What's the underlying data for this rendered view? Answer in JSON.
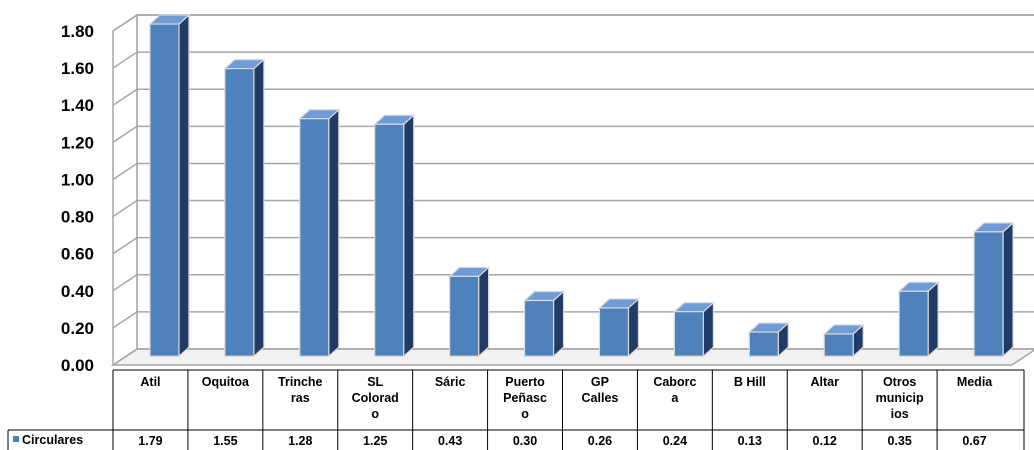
{
  "chart_data": {
    "type": "bar",
    "style": "3d-column-with-data-table",
    "categories": [
      [
        "Atil"
      ],
      [
        "Oquitoa"
      ],
      [
        "Trinche",
        "ras"
      ],
      [
        "SL",
        "Colorad",
        "o"
      ],
      [
        "Sáric"
      ],
      [
        "Puerto",
        "Peñasc",
        "o"
      ],
      [
        "GP",
        "Calles"
      ],
      [
        "Caborc",
        "a"
      ],
      [
        "B Hill"
      ],
      [
        "Altar"
      ],
      [
        "Otros",
        "municip",
        "ios"
      ],
      [
        "Media"
      ]
    ],
    "series": [
      {
        "name": "Circulares",
        "values": [
          1.79,
          1.55,
          1.28,
          1.25,
          0.43,
          0.3,
          0.26,
          0.24,
          0.13,
          0.12,
          0.35,
          0.67
        ],
        "labels": [
          "1.79",
          "1.55",
          "1.28",
          "1.25",
          "0.43",
          "0.30",
          "0.26",
          "0.24",
          "0.13",
          "0.12",
          "0.35",
          "0.67"
        ],
        "color": "#4F81BD"
      }
    ],
    "yticks": [
      "0.00",
      "0.20",
      "0.40",
      "0.60",
      "0.80",
      "1.00",
      "1.20",
      "1.40",
      "1.60",
      "1.80"
    ],
    "ylim": [
      0,
      1.8
    ],
    "grid": true,
    "legend": "in-data-table",
    "colors": {
      "bar_front": "#4F81BD",
      "bar_side": "#1F3B66",
      "bar_top": "#6F9BD6",
      "bar_edge": "#D9D9D9",
      "grid": "#A6A6A6",
      "axis": "#808080",
      "wall": "#FFFFFF"
    }
  }
}
